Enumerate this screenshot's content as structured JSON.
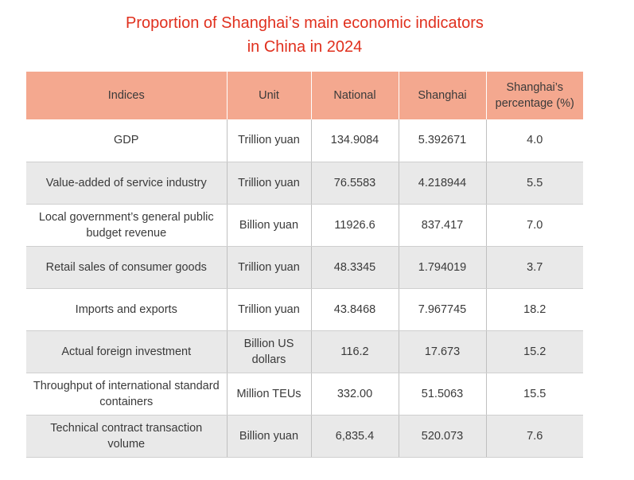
{
  "title_lines": [
    "Proportion of Shanghai’s main economic indicators",
    "in China in 2024"
  ],
  "chart_data": {
    "type": "table",
    "title": "Proportion of Shanghai’s main economic indicators in China in 2024",
    "columns": [
      "Indices",
      "Unit",
      "National",
      "Shanghai",
      "Shanghai’s percentage (%)"
    ],
    "rows": [
      {
        "index": "GDP",
        "unit": "Trillion yuan",
        "national": "134.9084",
        "shanghai": "5.392671",
        "percentage": "4.0"
      },
      {
        "index": "Value-added of service industry",
        "unit": "Trillion yuan",
        "national": "76.5583",
        "shanghai": "4.218944",
        "percentage": "5.5"
      },
      {
        "index": "Local government’s general public budget revenue",
        "unit": "Billion yuan",
        "national": "11926.6",
        "shanghai": "837.417",
        "percentage": "7.0"
      },
      {
        "index": "Retail sales of consumer goods",
        "unit": "Trillion yuan",
        "national": "48.3345",
        "shanghai": "1.794019",
        "percentage": "3.7"
      },
      {
        "index": "Imports and exports",
        "unit": "Trillion yuan",
        "national": "43.8468",
        "shanghai": "7.967745",
        "percentage": "18.2"
      },
      {
        "index": "Actual foreign investment",
        "unit": "Billion US dollars",
        "national": "116.2",
        "shanghai": "17.673",
        "percentage": "15.2"
      },
      {
        "index": "Throughput of international standard containers",
        "unit": "Million TEUs",
        "national": "332.00",
        "shanghai": "51.5063",
        "percentage": "15.5"
      },
      {
        "index": "Technical contract transaction volume",
        "unit": "Billion yuan",
        "national": "6,835.4",
        "shanghai": "520.073",
        "percentage": "7.6"
      }
    ]
  },
  "colors": {
    "title": "#e0301e",
    "header_bg": "#f4a88f",
    "row_alt_bg": "#e9e9e9"
  }
}
